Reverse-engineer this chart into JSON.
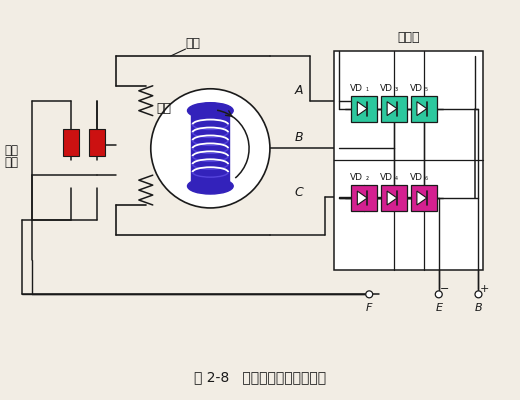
{
  "title": "图 2-8   交流发电机工作原理图",
  "bg_color": "#f2ede4",
  "stator_label": "定子",
  "rotor_label": "转子",
  "slip_ring_label1": "滑环",
  "slip_ring_label2": "电刷",
  "rectifier_label": "整流器",
  "vd_top": [
    "VD₁",
    "VD₃",
    "VD₅"
  ],
  "vd_bot": [
    "VD₂",
    "VD₄",
    "VD₆"
  ],
  "top_diode_color": "#2dc89e",
  "bot_diode_color": "#d42090",
  "rotor_color": "#3322bb",
  "brush_color": "#cc1111",
  "line_color": "#1a1a1a",
  "terminal_labels": [
    "F",
    "E",
    "B"
  ],
  "terminal_signs": [
    "",
    "−",
    "+"
  ]
}
